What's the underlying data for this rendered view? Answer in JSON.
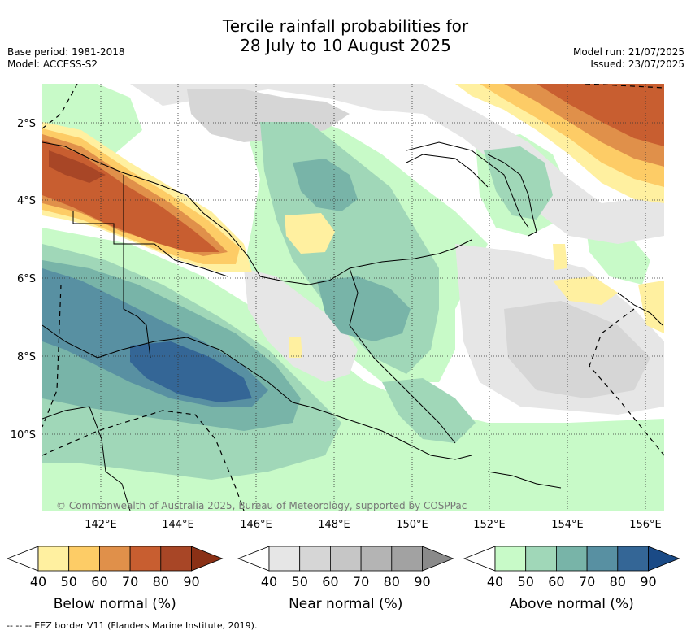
{
  "title": {
    "line1": "Tercile rainfall probabilities for",
    "line2": "28 July to 10 August 2025"
  },
  "meta": {
    "base_period": "Base period: 1981-2018",
    "model": "Model: ACCESS-S2",
    "model_run": "Model run: 21/07/2025",
    "issued": "Issued: 23/07/2025"
  },
  "axes": {
    "lat_labels": [
      "2°S",
      "4°S",
      "6°S",
      "8°S",
      "10°S"
    ],
    "lon_labels": [
      "142°E",
      "144°E",
      "146°E",
      "148°E",
      "150°E",
      "152°E",
      "154°E",
      "156°E"
    ]
  },
  "attribution": "© Commonwealth of Australia 2025, Bureau of Meteorology, supported by COSPPac",
  "colorbars": [
    {
      "label": "Below normal (%)",
      "ticks": [
        "40",
        "50",
        "60",
        "70",
        "80",
        "90"
      ],
      "colors": [
        "#ffffff",
        "#fff0a0",
        "#fdcc66",
        "#e0904a",
        "#c85e30",
        "#a84626",
        "#8a3015"
      ]
    },
    {
      "label": "Near normal (%)",
      "ticks": [
        "40",
        "50",
        "60",
        "70",
        "80",
        "90"
      ],
      "colors": [
        "#ffffff",
        "#e6e6e6",
        "#d6d6d6",
        "#c6c6c6",
        "#b4b4b4",
        "#a2a2a2",
        "#8a8a8a"
      ]
    },
    {
      "label": "Above normal (%)",
      "ticks": [
        "40",
        "50",
        "60",
        "70",
        "80",
        "90"
      ],
      "colors": [
        "#ffffff",
        "#c8fac8",
        "#a0d7b8",
        "#78b4a8",
        "#5890a2",
        "#346696",
        "#1a4a86"
      ]
    }
  ],
  "footer": "--  --  -- EEZ border V11 (Flanders Marine Institute, 2019)."
}
